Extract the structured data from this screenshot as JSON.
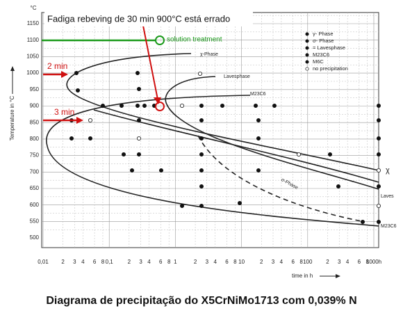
{
  "annotation": "Fadiga rebeving de 30 min 900°C está errado",
  "caption": "Diagrama de precipitação do X5CrNiMo1713 com 0,039% N",
  "y_axis": {
    "unit": "°C",
    "label": "Temperature in °C",
    "ticks": [
      "1150",
      "1100",
      "1050",
      "1000",
      "950",
      "900",
      "850",
      "800",
      "750",
      "700",
      "650",
      "600",
      "550",
      "500"
    ]
  },
  "x_axis": {
    "label": "time in h",
    "ticks": [
      "0,01",
      "2",
      "3",
      "4",
      "6",
      "8",
      "0,1",
      "2",
      "3",
      "4",
      "6",
      "8",
      "1",
      "2",
      "3",
      "4",
      "6",
      "8",
      "10",
      "2",
      "3",
      "4",
      "6",
      "8",
      "100",
      "2",
      "3",
      "4",
      "6",
      "8",
      "1000h"
    ]
  },
  "markers": {
    "solution_treatment": "solution treatment",
    "two_min": "2 min",
    "three_min": "3 min"
  },
  "legend": [
    "γ- Phase",
    "σ- Phase",
    "= Lavesphase",
    "M23C6",
    "M6C",
    "no precipitation"
  ],
  "curve_labels": [
    "χ-Phase",
    "Lavesphase",
    "M23C6",
    "σ-Phase",
    "χ",
    "Laves",
    "M23C6"
  ]
}
